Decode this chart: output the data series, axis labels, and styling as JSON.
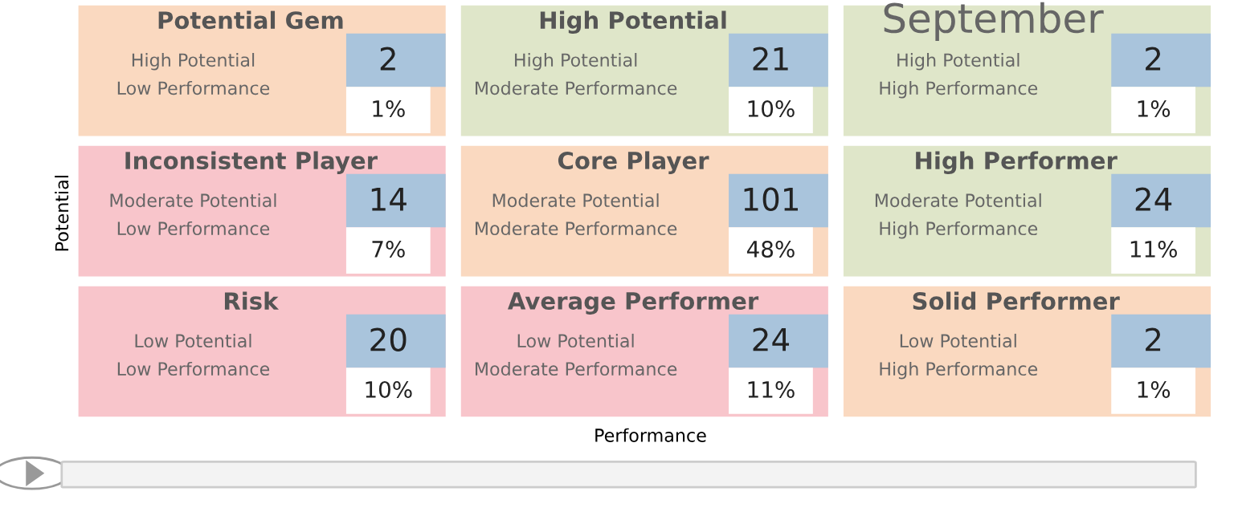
{
  "chart_data": {
    "type": "heatmap",
    "xlabel": "Performance",
    "ylabel": "Potential",
    "annotations": [
      "September",
      "Potential Gem",
      "High Potential",
      "Low Performance",
      "1%",
      "High Potential",
      "High Potential",
      "Moderate Performance",
      "10%",
      null,
      "High Potential",
      "High Performance",
      "1%",
      "Inconsistent Player",
      "Moderate Potential",
      "Low Performance",
      "7%",
      "Core Player",
      "Moderate Potential",
      "Moderate Performance",
      "48%",
      "High Performer",
      "Moderate Potential",
      "High Performance",
      "11%",
      "Risk",
      "Low Potential",
      "Low Performance",
      "10%",
      "Average Performer",
      "Low Potential",
      "Moderate Performance",
      "11%",
      "Solid Performer",
      "Low Potential",
      "High Performance",
      "1%"
    ],
    "categories": [
      null,
      null,
      null
    ],
    "y_categories": [
      null,
      null,
      null
    ],
    "cells": [
      [
        2,
        21,
        2
      ],
      [
        14,
        101,
        24
      ],
      [
        20,
        24,
        2
      ]
    ],
    "data_labels": true,
    "colors": [
      [
        "#fad9c0",
        "#dfe6c9",
        "#dfe6c9"
      ],
      [
        "#f8c5cb",
        "#fad9c0",
        "#dfe6c9"
      ],
      [
        "#f8c5cb",
        "#f8c5cb",
        "#fad9c0"
      ]
    ]
  }
}
